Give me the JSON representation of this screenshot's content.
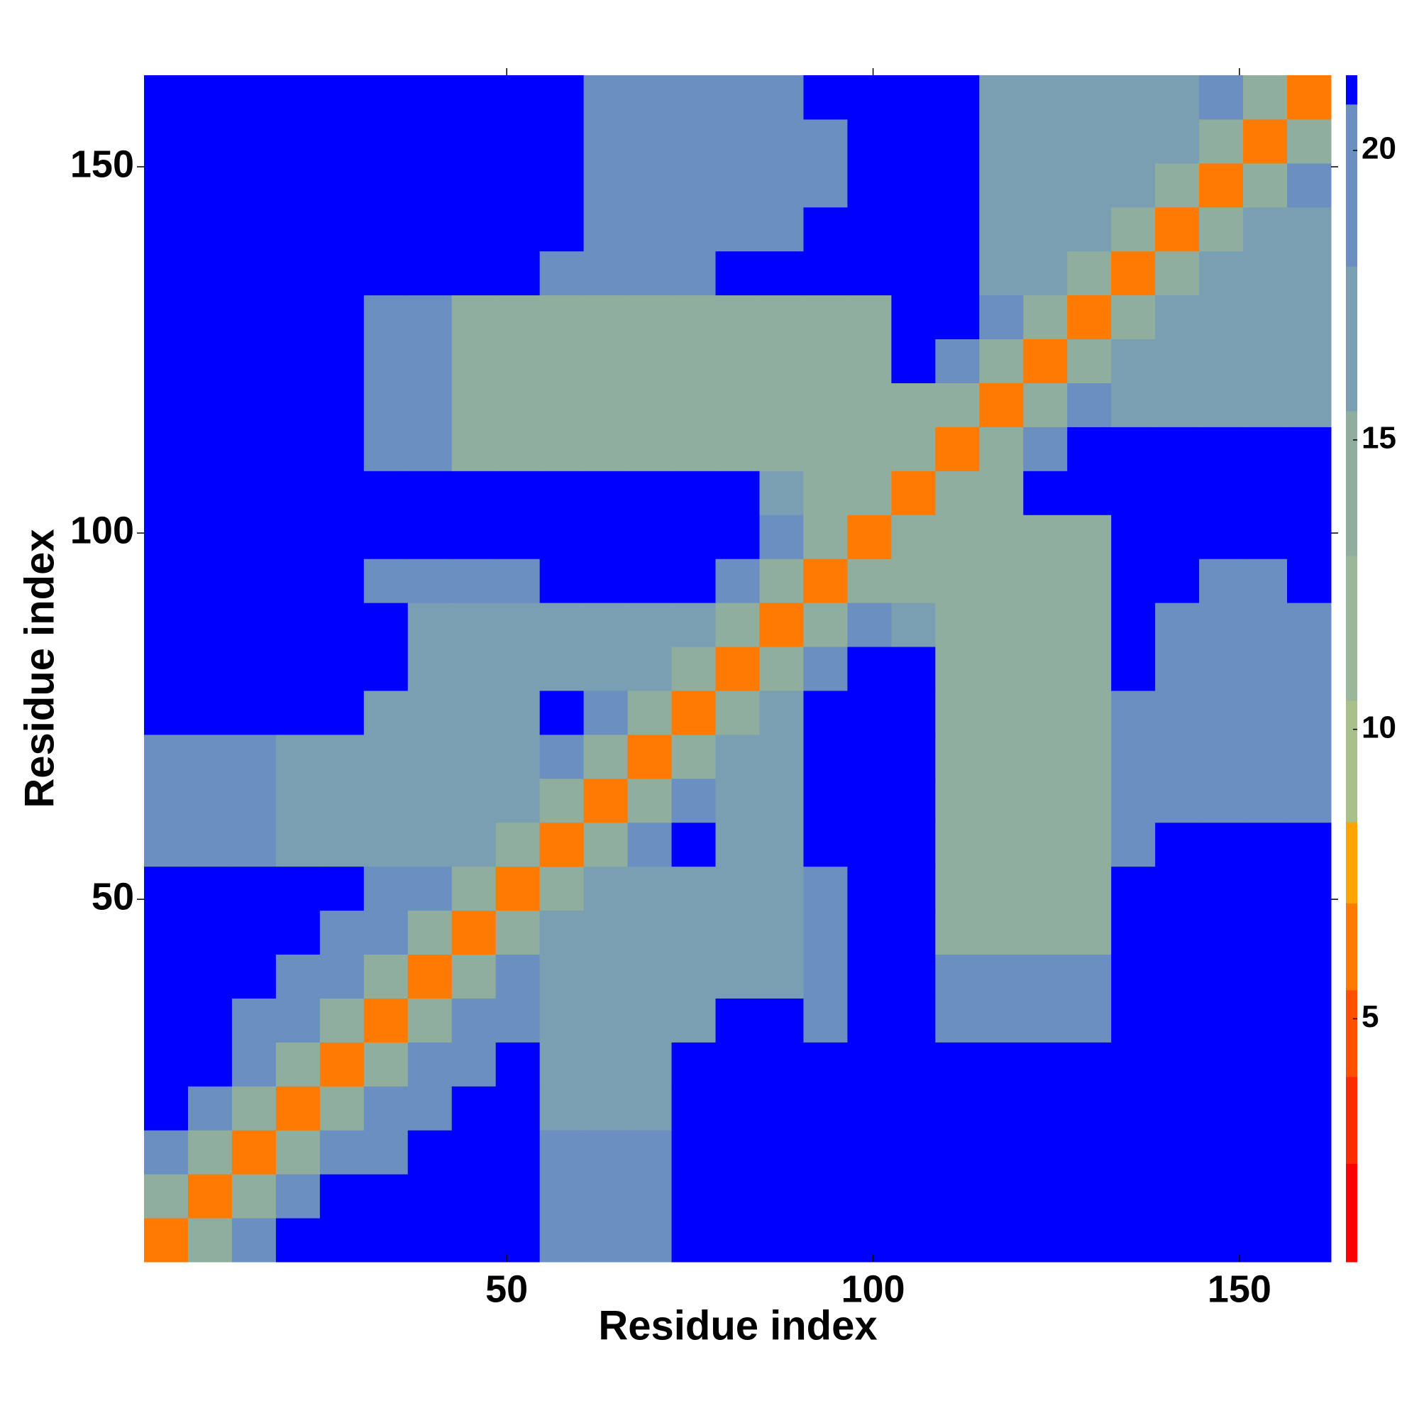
{
  "chart_data": {
    "type": "heatmap",
    "xlabel": "Residue index",
    "ylabel": "Residue index",
    "xlim": [
      0.5,
      162.5
    ],
    "ylim": [
      0.5,
      162.5
    ],
    "xticks": [
      50,
      100,
      150
    ],
    "yticks": [
      50,
      100,
      150
    ],
    "xbins": [
      0.5,
      6.5,
      12.5,
      18.5,
      24.5,
      30.5,
      36.5,
      42.5,
      48.5,
      54.5,
      60.5,
      66.5,
      72.5,
      78.5,
      84.5,
      90.5,
      96.5,
      102.5,
      108.5,
      114.5,
      120.5,
      126.5,
      132.5,
      138.5,
      144.5,
      150.5,
      156.5,
      162.5
    ],
    "ybins": [
      0.5,
      6.5,
      12.5,
      18.5,
      24.5,
      30.5,
      36.5,
      42.5,
      48.5,
      54.5,
      60.5,
      66.5,
      72.5,
      78.5,
      84.5,
      90.5,
      96.5,
      102.5,
      108.5,
      114.5,
      120.5,
      126.5,
      132.5,
      138.5,
      144.5,
      150.5,
      156.5,
      162.5
    ],
    "z": [
      [
        6,
        13,
        18,
        21,
        21,
        21,
        21,
        21,
        21,
        19,
        19,
        19,
        21,
        21,
        21,
        21,
        21,
        21,
        21,
        21,
        21,
        21,
        21,
        21,
        21,
        21,
        21
      ],
      [
        13,
        6,
        13,
        18,
        21,
        21,
        21,
        21,
        21,
        18,
        18,
        18,
        21,
        21,
        21,
        21,
        21,
        21,
        21,
        21,
        21,
        21,
        21,
        21,
        21,
        21,
        21
      ],
      [
        18,
        13,
        6,
        13,
        18,
        18,
        21,
        21,
        21,
        18,
        18,
        18,
        21,
        21,
        21,
        21,
        21,
        21,
        21,
        21,
        21,
        21,
        21,
        21,
        21,
        21,
        21
      ],
      [
        21,
        18,
        13,
        6,
        13,
        18,
        18,
        21,
        21,
        16,
        16,
        16,
        21,
        21,
        21,
        21,
        21,
        21,
        21,
        21,
        21,
        21,
        21,
        21,
        21,
        21,
        21
      ],
      [
        21,
        21,
        18,
        13,
        6,
        13,
        18,
        18,
        21,
        16,
        16,
        16,
        21,
        21,
        21,
        21,
        21,
        21,
        21,
        21,
        21,
        21,
        21,
        21,
        21,
        21,
        21
      ],
      [
        21,
        21,
        18,
        18,
        13,
        6,
        13,
        18,
        18,
        16,
        16,
        16,
        17,
        21,
        21,
        18,
        21,
        21,
        18,
        18,
        18,
        18,
        21,
        21,
        21,
        21,
        21
      ],
      [
        21,
        21,
        21,
        18,
        18,
        13,
        6,
        13,
        18,
        16,
        16,
        16,
        17,
        17,
        17,
        18,
        21,
        21,
        18,
        18,
        18,
        18,
        21,
        21,
        21,
        21,
        21
      ],
      [
        21,
        21,
        21,
        21,
        18,
        18,
        13,
        6,
        13,
        16,
        16,
        16,
        17,
        17,
        17,
        18,
        21,
        21,
        15,
        15,
        15,
        15,
        21,
        21,
        21,
        21,
        21
      ],
      [
        21,
        21,
        21,
        21,
        21,
        18,
        18,
        13,
        6,
        13,
        16,
        16,
        17,
        17,
        17,
        18,
        21,
        21,
        15,
        15,
        15,
        15,
        21,
        21,
        21,
        21,
        21
      ],
      [
        19,
        18,
        18,
        16,
        16,
        16,
        16,
        16,
        13,
        6,
        13,
        18,
        21,
        16,
        16,
        21,
        21,
        21,
        15,
        15,
        15,
        15,
        18,
        21,
        21,
        21,
        21
      ],
      [
        19,
        18,
        18,
        16,
        16,
        16,
        16,
        16,
        16,
        13,
        6,
        13,
        18,
        16,
        16,
        21,
        21,
        21,
        15,
        15,
        15,
        15,
        18,
        19,
        19,
        19,
        19
      ],
      [
        19,
        18,
        18,
        16,
        16,
        16,
        16,
        16,
        16,
        18,
        13,
        6,
        13,
        16,
        16,
        21,
        21,
        21,
        15,
        15,
        15,
        15,
        18,
        19,
        19,
        19,
        19
      ],
      [
        21,
        21,
        21,
        21,
        21,
        17,
        17,
        17,
        17,
        21,
        18,
        13,
        6,
        13,
        16,
        21,
        21,
        21,
        15,
        15,
        15,
        15,
        18,
        19,
        19,
        19,
        19
      ],
      [
        21,
        21,
        21,
        21,
        21,
        21,
        17,
        17,
        17,
        16,
        16,
        16,
        13,
        6,
        13,
        18,
        21,
        21,
        15,
        15,
        15,
        15,
        21,
        19,
        19,
        19,
        19
      ],
      [
        21,
        21,
        21,
        21,
        21,
        21,
        17,
        17,
        17,
        16,
        16,
        16,
        16,
        13,
        6,
        13,
        18,
        17,
        15,
        15,
        15,
        15,
        21,
        19,
        19,
        19,
        19
      ],
      [
        21,
        21,
        21,
        21,
        21,
        18,
        18,
        18,
        18,
        21,
        21,
        21,
        21,
        18,
        13,
        6,
        13,
        15,
        15,
        15,
        15,
        15,
        21,
        21,
        19,
        19,
        21
      ],
      [
        21,
        21,
        21,
        21,
        21,
        21,
        21,
        21,
        21,
        21,
        21,
        21,
        21,
        21,
        18,
        13,
        6,
        13,
        15,
        15,
        15,
        15,
        21,
        21,
        21,
        21,
        21
      ],
      [
        21,
        21,
        21,
        21,
        21,
        21,
        21,
        21,
        21,
        21,
        21,
        21,
        21,
        21,
        17,
        15,
        13,
        6,
        13,
        15,
        21,
        21,
        21,
        21,
        21,
        21,
        21
      ],
      [
        21,
        21,
        21,
        21,
        21,
        18,
        18,
        15,
        15,
        15,
        15,
        15,
        15,
        15,
        15,
        15,
        15,
        13,
        6,
        13,
        18,
        21,
        21,
        21,
        21,
        21,
        21
      ],
      [
        21,
        21,
        21,
        21,
        21,
        18,
        18,
        15,
        15,
        15,
        15,
        15,
        15,
        15,
        15,
        15,
        15,
        15,
        13,
        6,
        13,
        18,
        16,
        16,
        16,
        16,
        16
      ],
      [
        21,
        21,
        21,
        21,
        21,
        18,
        18,
        15,
        15,
        15,
        15,
        15,
        15,
        15,
        15,
        15,
        15,
        21,
        18,
        13,
        6,
        13,
        16,
        16,
        16,
        16,
        16
      ],
      [
        21,
        21,
        21,
        21,
        21,
        18,
        18,
        15,
        15,
        15,
        15,
        15,
        15,
        15,
        15,
        15,
        15,
        21,
        21,
        18,
        13,
        6,
        13,
        16,
        16,
        16,
        16
      ],
      [
        21,
        21,
        21,
        21,
        21,
        21,
        21,
        21,
        21,
        18,
        18,
        18,
        18,
        21,
        21,
        21,
        21,
        21,
        21,
        16,
        16,
        13,
        6,
        13,
        16,
        16,
        16
      ],
      [
        21,
        21,
        21,
        21,
        21,
        21,
        21,
        21,
        21,
        21,
        19,
        19,
        19,
        19,
        19,
        21,
        21,
        21,
        21,
        16,
        16,
        16,
        13,
        6,
        13,
        16,
        16
      ],
      [
        21,
        21,
        21,
        21,
        21,
        21,
        21,
        21,
        21,
        21,
        19,
        19,
        19,
        19,
        19,
        19,
        21,
        21,
        21,
        16,
        16,
        16,
        16,
        13,
        6,
        13,
        18
      ],
      [
        21,
        21,
        21,
        21,
        21,
        21,
        21,
        21,
        21,
        21,
        19,
        19,
        19,
        19,
        19,
        19,
        21,
        21,
        21,
        16,
        16,
        16,
        16,
        16,
        13,
        6,
        13
      ],
      [
        21,
        21,
        21,
        21,
        21,
        21,
        21,
        21,
        21,
        21,
        19,
        19,
        19,
        19,
        19,
        21,
        21,
        21,
        21,
        16,
        16,
        16,
        16,
        16,
        18,
        13,
        6
      ]
    ],
    "colorscale": [
      {
        "max": 2.5,
        "color": "#ff0000"
      },
      {
        "max": 4,
        "color": "#ff2a00"
      },
      {
        "max": 5.5,
        "color": "#ff5000"
      },
      {
        "max": 7,
        "color": "#ff7a00"
      },
      {
        "max": 8.4,
        "color": "#ffa500"
      },
      {
        "max": 10.5,
        "color": "#a8c08a"
      },
      {
        "max": 13,
        "color": "#99b89a"
      },
      {
        "max": 15.5,
        "color": "#8fae9e"
      },
      {
        "max": 18,
        "color": "#7a9fb2"
      },
      {
        "max": 20.8,
        "color": "#6b8fc0"
      },
      {
        "max": 21.3,
        "color": "#0000ff"
      }
    ],
    "colorbar": {
      "lim": [
        0.8,
        21.3
      ],
      "ticks": [
        5,
        10,
        15,
        20
      ]
    }
  }
}
